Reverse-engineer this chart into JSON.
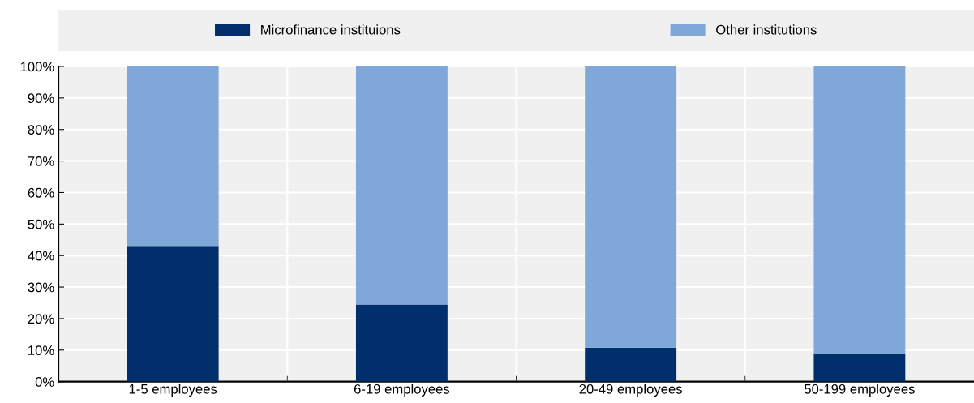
{
  "chart_data": {
    "type": "bar",
    "stacked": true,
    "categories": [
      "1-5 employees",
      "6-19 employees",
      "20-49 employees",
      "50-199 employees"
    ],
    "series": [
      {
        "name": "Microfinance instituions",
        "color": "#002f6c",
        "values": [
          43.1,
          24.5,
          10.8,
          8.8
        ]
      },
      {
        "name": "Other institutions",
        "color": "#7fa8d9",
        "values": [
          56.9,
          75.5,
          89.2,
          91.2
        ]
      }
    ],
    "ylim": [
      0,
      100
    ],
    "yticks": [
      {
        "value": 0,
        "label": "0%"
      },
      {
        "value": 10,
        "label": "10%"
      },
      {
        "value": 20,
        "label": "20%"
      },
      {
        "value": 30,
        "label": "30%"
      },
      {
        "value": 40,
        "label": "40%"
      },
      {
        "value": 50,
        "label": "50%"
      },
      {
        "value": 60,
        "label": "60%"
      },
      {
        "value": 70,
        "label": "70%"
      },
      {
        "value": 80,
        "label": "80%"
      },
      {
        "value": 90,
        "label": "90%"
      },
      {
        "value": 100,
        "label": "100%"
      }
    ],
    "grid": true,
    "legend": "top"
  }
}
